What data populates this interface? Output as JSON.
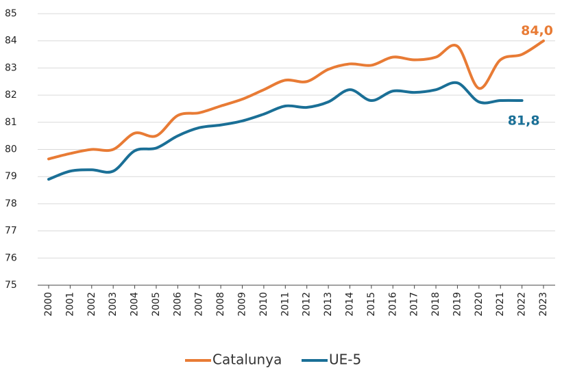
{
  "chart_data": {
    "type": "line",
    "categories": [
      "2000",
      "2001",
      "2002",
      "2003",
      "2004",
      "2005",
      "2006",
      "2007",
      "2008",
      "2009",
      "2010",
      "2011",
      "2012",
      "2013",
      "2014",
      "2015",
      "2016",
      "2017",
      "2018",
      "2019",
      "2020",
      "2021",
      "2022",
      "2023"
    ],
    "series": [
      {
        "name": "Catalunya",
        "color": "#e87b35",
        "values": [
          79.65,
          79.85,
          80.0,
          80.0,
          80.6,
          80.5,
          81.25,
          81.35,
          81.6,
          81.85,
          82.2,
          82.55,
          82.5,
          82.95,
          83.15,
          83.1,
          83.4,
          83.3,
          83.4,
          83.8,
          82.25,
          83.3,
          83.5,
          84.0
        ],
        "value_labels": [
          null,
          null,
          null,
          null,
          null,
          null,
          null,
          null,
          null,
          null,
          null,
          null,
          null,
          null,
          null,
          null,
          null,
          null,
          null,
          null,
          null,
          null,
          null,
          "84,0"
        ]
      },
      {
        "name": "UE-5",
        "color": "#1a6f96",
        "values": [
          78.9,
          79.2,
          79.25,
          79.2,
          79.95,
          80.05,
          80.5,
          80.8,
          80.9,
          81.05,
          81.3,
          81.6,
          81.55,
          81.75,
          82.2,
          81.8,
          82.15,
          82.1,
          82.2,
          82.45,
          81.75,
          81.8,
          81.8,
          null
        ],
        "value_labels": [
          null,
          null,
          null,
          null,
          null,
          null,
          null,
          null,
          null,
          null,
          null,
          null,
          null,
          null,
          null,
          null,
          null,
          null,
          null,
          null,
          null,
          null,
          "81,8",
          null
        ]
      }
    ],
    "ylim": [
      75,
      85
    ],
    "yticks": [
      75,
      76,
      77,
      78,
      79,
      80,
      81,
      82,
      83,
      84,
      85
    ],
    "grid": true,
    "legend": "bottom"
  }
}
